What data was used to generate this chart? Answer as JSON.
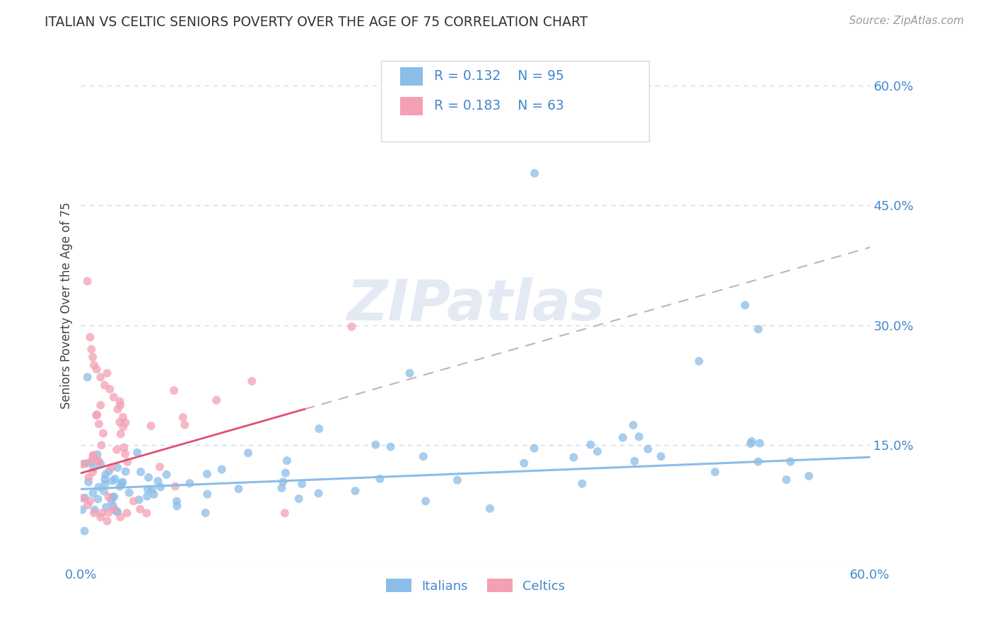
{
  "title": "ITALIAN VS CELTIC SENIORS POVERTY OVER THE AGE OF 75 CORRELATION CHART",
  "source": "Source: ZipAtlas.com",
  "ylabel": "Seniors Poverty Over the Age of 75",
  "xlim": [
    0.0,
    0.6
  ],
  "ylim": [
    0.0,
    0.65
  ],
  "ytick_labels_right": [
    "15.0%",
    "30.0%",
    "45.0%",
    "60.0%"
  ],
  "ytick_positions_right": [
    0.15,
    0.3,
    0.45,
    0.6
  ],
  "grid_color": "#c8d8e8",
  "background_color": "#ffffff",
  "italian_color": "#8bbde8",
  "celtic_color": "#f4a0b4",
  "italian_R": 0.132,
  "italian_N": 95,
  "celtic_R": 0.183,
  "celtic_N": 63,
  "watermark": "ZIPatlas",
  "legend_label_italian": "Italians",
  "legend_label_celtic": "Celtics",
  "title_color": "#333333",
  "axis_label_color": "#444444",
  "tick_color": "#4488cc",
  "legend_text_color": "#4488cc",
  "celtic_trend_color": "#e05070",
  "celtic_trend_dashed_color": "#c8b0b8"
}
